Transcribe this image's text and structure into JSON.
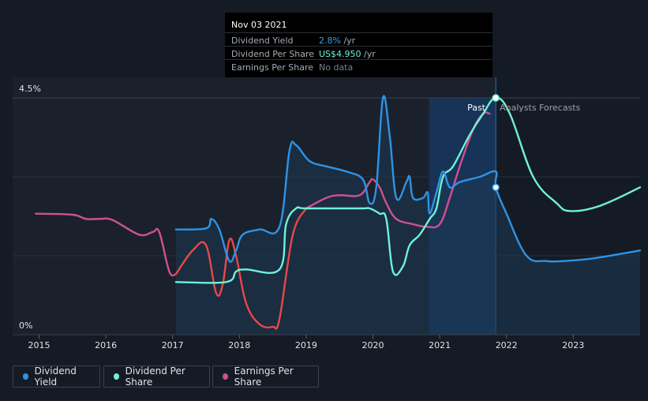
{
  "tooltip": {
    "date": "Nov 03 2021",
    "rows": [
      {
        "label": "Dividend Yield",
        "value": "2.8%",
        "unit": "/yr",
        "color": "#3d9fe0"
      },
      {
        "label": "Dividend Per Share",
        "value": "US$4.950",
        "unit": "/yr",
        "color": "#6ef2d6"
      },
      {
        "label": "Earnings Per Share",
        "value": "No data",
        "unit": "",
        "color": "#7b8088"
      }
    ]
  },
  "regions": {
    "past": "Past",
    "forecast": "Analysts Forecasts"
  },
  "legend": [
    {
      "label": "Dividend Yield",
      "color": "#2e93e6"
    },
    {
      "label": "Dividend Per Share",
      "color": "#6ef2d6"
    },
    {
      "label": "Earnings Per Share",
      "color": "#d1508f"
    }
  ],
  "chart_data": {
    "type": "line",
    "x_ticks": [
      "2015",
      "2016",
      "2017",
      "2018",
      "2019",
      "2020",
      "2021",
      "2022",
      "2023"
    ],
    "y_ticks": [
      "0%",
      "4.5%"
    ],
    "ylim": [
      0,
      4.5
    ],
    "xlim": [
      2014.6,
      2024.0
    ],
    "past_end": 2021.84,
    "highlight_start": 2020.84,
    "series": [
      {
        "name": "Dividend Yield",
        "color": "#2e93e6",
        "points": [
          [
            2017.05,
            2.0
          ],
          [
            2017.5,
            2.02
          ],
          [
            2017.58,
            2.2
          ],
          [
            2017.7,
            2.0
          ],
          [
            2017.85,
            1.4
          ],
          [
            2017.95,
            1.6
          ],
          [
            2018.05,
            1.9
          ],
          [
            2018.3,
            2.0
          ],
          [
            2018.6,
            2.05
          ],
          [
            2018.75,
            3.5
          ],
          [
            2018.85,
            3.6
          ],
          [
            2019.05,
            3.3
          ],
          [
            2019.3,
            3.2
          ],
          [
            2019.6,
            3.1
          ],
          [
            2019.85,
            2.95
          ],
          [
            2019.95,
            2.5
          ],
          [
            2020.05,
            2.8
          ],
          [
            2020.15,
            4.5
          ],
          [
            2020.25,
            3.8
          ],
          [
            2020.35,
            2.6
          ],
          [
            2020.5,
            2.9
          ],
          [
            2020.55,
            3.0
          ],
          [
            2020.6,
            2.6
          ],
          [
            2020.75,
            2.6
          ],
          [
            2020.82,
            2.7
          ],
          [
            2020.85,
            2.3
          ],
          [
            2020.95,
            2.7
          ],
          [
            2021.05,
            3.1
          ],
          [
            2021.15,
            2.8
          ],
          [
            2021.3,
            2.9
          ],
          [
            2021.6,
            3.0
          ],
          [
            2021.84,
            3.1
          ],
          [
            2021.84,
            2.8
          ],
          [
            2022.0,
            2.3
          ],
          [
            2022.3,
            1.5
          ],
          [
            2022.6,
            1.4
          ],
          [
            2022.85,
            1.4
          ],
          [
            2023.3,
            1.45
          ],
          [
            2024.0,
            1.6
          ]
        ]
      },
      {
        "name": "Dividend Per Share",
        "color": "#6ef2d6",
        "points": [
          [
            2017.05,
            1.0
          ],
          [
            2017.8,
            1.0
          ],
          [
            2017.95,
            1.2
          ],
          [
            2018.1,
            1.24
          ],
          [
            2018.6,
            1.24
          ],
          [
            2018.7,
            2.1
          ],
          [
            2018.85,
            2.4
          ],
          [
            2019.0,
            2.4
          ],
          [
            2019.8,
            2.4
          ],
          [
            2019.95,
            2.4
          ],
          [
            2020.1,
            2.3
          ],
          [
            2020.2,
            2.2
          ],
          [
            2020.3,
            1.2
          ],
          [
            2020.45,
            1.3
          ],
          [
            2020.55,
            1.7
          ],
          [
            2020.7,
            1.9
          ],
          [
            2020.85,
            2.2
          ],
          [
            2020.95,
            2.4
          ],
          [
            2021.05,
            3.0
          ],
          [
            2021.2,
            3.2
          ],
          [
            2021.45,
            3.8
          ],
          [
            2021.65,
            4.2
          ],
          [
            2021.84,
            4.5
          ],
          [
            2022.05,
            4.2
          ],
          [
            2022.4,
            3.0
          ],
          [
            2022.75,
            2.5
          ],
          [
            2022.95,
            2.35
          ],
          [
            2023.4,
            2.45
          ],
          [
            2024.0,
            2.8
          ]
        ]
      },
      {
        "name": "Earnings Per Share",
        "color": "#d1508f",
        "points": [
          [
            2014.95,
            2.3
          ],
          [
            2015.5,
            2.28
          ],
          [
            2015.7,
            2.2
          ],
          [
            2015.9,
            2.2
          ],
          [
            2016.1,
            2.18
          ],
          [
            2016.5,
            1.9
          ],
          [
            2016.7,
            1.95
          ],
          [
            2016.8,
            1.95
          ],
          [
            2016.95,
            1.2
          ],
          [
            2017.05,
            1.15
          ]
        ]
      },
      {
        "name": "Earnings Per Share",
        "color": "#d1508f",
        "points": [
          [
            2019.0,
            2.4
          ],
          [
            2019.3,
            2.6
          ],
          [
            2019.5,
            2.65
          ],
          [
            2019.8,
            2.65
          ],
          [
            2019.95,
            2.9
          ],
          [
            2020.0,
            2.95
          ],
          [
            2020.1,
            2.8
          ],
          [
            2020.2,
            2.5
          ],
          [
            2020.35,
            2.2
          ],
          [
            2020.6,
            2.1
          ],
          [
            2020.8,
            2.05
          ],
          [
            2021.0,
            2.1
          ],
          [
            2021.15,
            2.6
          ],
          [
            2021.3,
            3.2
          ],
          [
            2021.5,
            3.9
          ],
          [
            2021.65,
            4.2
          ],
          [
            2021.75,
            4.2
          ]
        ]
      },
      {
        "name": "Earnings Per Share",
        "color": "#e84848",
        "points": [
          [
            2017.05,
            1.15
          ],
          [
            2017.3,
            1.6
          ],
          [
            2017.5,
            1.7
          ],
          [
            2017.65,
            0.8
          ],
          [
            2017.75,
            0.95
          ],
          [
            2017.85,
            1.8
          ],
          [
            2017.95,
            1.5
          ],
          [
            2018.1,
            0.6
          ],
          [
            2018.3,
            0.2
          ],
          [
            2018.5,
            0.15
          ],
          [
            2018.6,
            0.3
          ],
          [
            2018.8,
            1.9
          ],
          [
            2019.0,
            2.4
          ]
        ]
      }
    ],
    "markers": [
      {
        "x": 2021.84,
        "y": 2.8,
        "color": "#2e93e6"
      },
      {
        "x": 2021.84,
        "y": 4.5,
        "color": "#6ef2d6"
      }
    ]
  }
}
